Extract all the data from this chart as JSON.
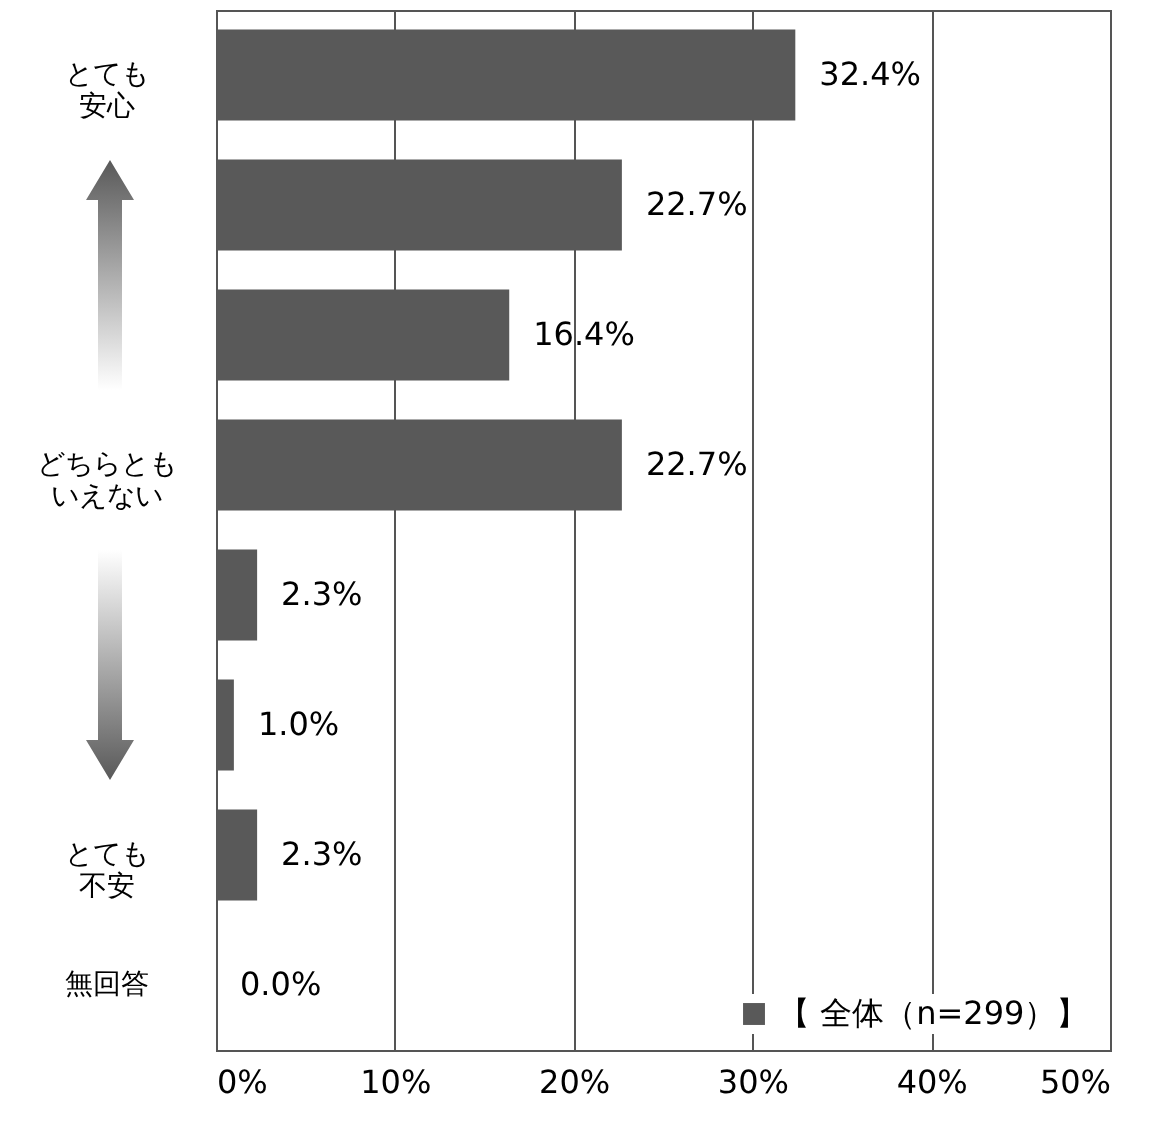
{
  "chart_data": {
    "type": "bar",
    "orientation": "horizontal",
    "categories": [
      "とても安心",
      null,
      null,
      "どちらともいえない",
      null,
      null,
      "とても不安",
      "無回答"
    ],
    "series": [
      {
        "name": "【 全体（n=299）】",
        "color": "#595959",
        "values": [
          32.4,
          22.7,
          16.4,
          22.7,
          2.3,
          1.0,
          2.3,
          0.0
        ],
        "value_labels": [
          "32.4%",
          "22.7%",
          "16.4%",
          "22.7%",
          "2.3%",
          "1.0%",
          "2.3%",
          "0.0%"
        ]
      }
    ],
    "xlim": [
      0,
      50
    ],
    "xticks": [
      {
        "value": 0,
        "label": "0%"
      },
      {
        "value": 10,
        "label": "10%"
      },
      {
        "value": 20,
        "label": "20%"
      },
      {
        "value": 30,
        "label": "30%"
      },
      {
        "value": 40,
        "label": "40%"
      },
      {
        "value": 50,
        "label": "50%"
      }
    ],
    "grid": "x",
    "legend": "bottom right"
  }
}
